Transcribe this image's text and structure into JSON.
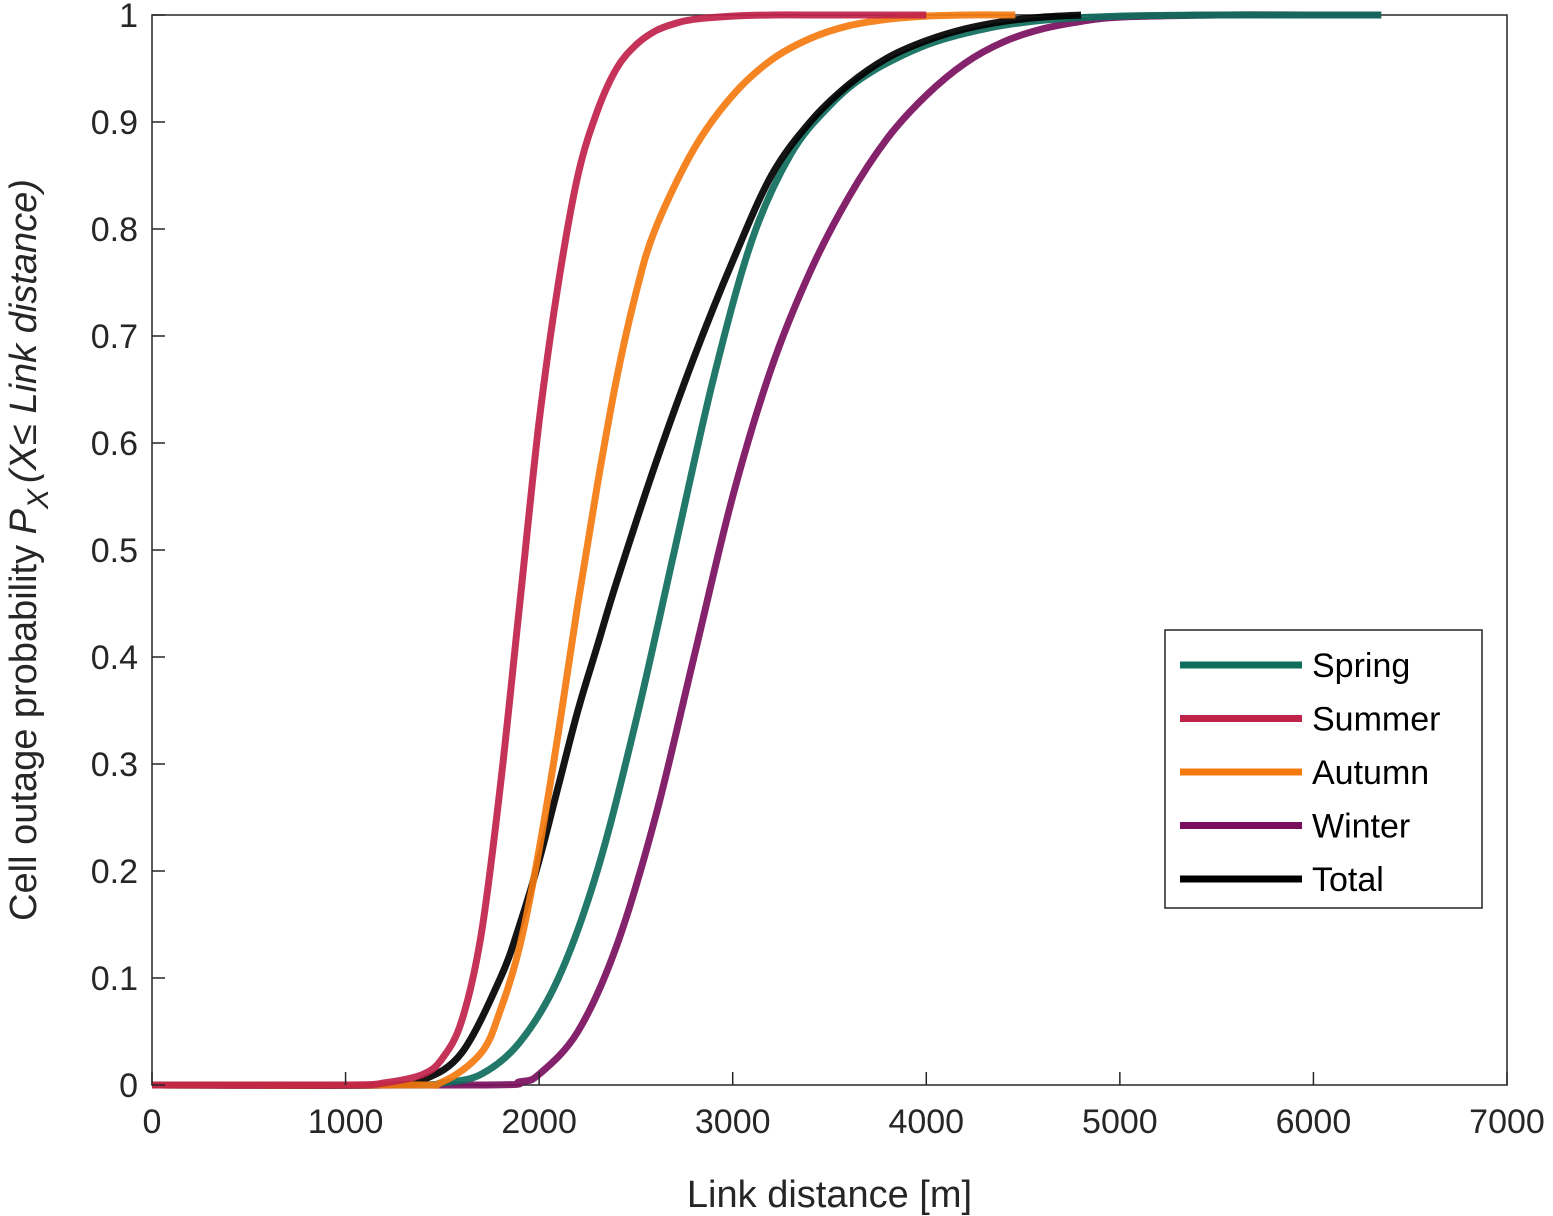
{
  "chart_data": {
    "type": "line",
    "xlabel": "Link distance [m]",
    "ylabel": {
      "prefix": "Cell outage probability ",
      "P": "P",
      "sub": "X",
      "paren": "(X≤ Link distance)"
    },
    "xlim": [
      0,
      7000
    ],
    "ylim": [
      0,
      1
    ],
    "xticks": [
      0,
      1000,
      2000,
      3000,
      4000,
      5000,
      6000,
      7000
    ],
    "yticks": [
      0,
      0.1,
      0.2,
      0.3,
      0.4,
      0.5,
      0.6,
      0.7,
      0.8,
      0.9,
      1
    ],
    "xtick_labels": [
      "0",
      "1000",
      "2000",
      "3000",
      "4000",
      "5000",
      "6000",
      "7000"
    ],
    "ytick_labels": [
      "0",
      "0.1",
      "0.2",
      "0.3",
      "0.4",
      "0.5",
      "0.6",
      "0.7",
      "0.8",
      "0.9",
      "1"
    ],
    "grid": false,
    "legend_position": "lower-right",
    "series": [
      {
        "name": "Spring",
        "color": "#0f6e5c",
        "x": [
          0,
          1300,
          1500,
          1700,
          1900,
          2100,
          2300,
          2500,
          2700,
          2900,
          3100,
          3300,
          3500,
          3700,
          4000,
          4300,
          4600,
          5000,
          5500,
          6000,
          6350
        ],
        "y": [
          0,
          0,
          0.002,
          0.01,
          0.04,
          0.1,
          0.2,
          0.34,
          0.5,
          0.66,
          0.79,
          0.87,
          0.915,
          0.945,
          0.972,
          0.987,
          0.995,
          0.999,
          1,
          1,
          1
        ]
      },
      {
        "name": "Summer",
        "color": "#c0234a",
        "x": [
          0,
          1000,
          1200,
          1400,
          1500,
          1600,
          1700,
          1800,
          1900,
          2000,
          2100,
          2200,
          2300,
          2400,
          2500,
          2600,
          2700,
          2800,
          3000,
          3200,
          3500,
          4000
        ],
        "y": [
          0,
          0,
          0.002,
          0.01,
          0.025,
          0.06,
          0.14,
          0.28,
          0.45,
          0.62,
          0.75,
          0.85,
          0.91,
          0.95,
          0.972,
          0.985,
          0.992,
          0.996,
          0.999,
          1,
          1,
          1
        ]
      },
      {
        "name": "Autumn",
        "color": "#f47a10",
        "x": [
          0,
          1300,
          1500,
          1700,
          1800,
          1900,
          2000,
          2100,
          2200,
          2300,
          2400,
          2500,
          2600,
          2800,
          3000,
          3200,
          3400,
          3600,
          3800,
          4000,
          4200,
          4460
        ],
        "y": [
          0,
          0,
          0.003,
          0.03,
          0.07,
          0.13,
          0.22,
          0.33,
          0.45,
          0.56,
          0.66,
          0.74,
          0.8,
          0.875,
          0.925,
          0.958,
          0.978,
          0.99,
          0.996,
          0.999,
          1,
          1
        ]
      },
      {
        "name": "Winter",
        "color": "#7a0f5e",
        "x": [
          0,
          1700,
          1900,
          2000,
          2200,
          2400,
          2600,
          2800,
          3000,
          3200,
          3400,
          3600,
          3800,
          4000,
          4200,
          4400,
          4600,
          4800,
          5000,
          5500,
          6000,
          6350
        ],
        "y": [
          0,
          0,
          0.003,
          0.01,
          0.05,
          0.13,
          0.25,
          0.4,
          0.55,
          0.67,
          0.76,
          0.83,
          0.885,
          0.925,
          0.955,
          0.975,
          0.987,
          0.994,
          0.998,
          1,
          1,
          1
        ]
      },
      {
        "name": "Total",
        "color": "#000000",
        "x": [
          0,
          1200,
          1400,
          1600,
          1800,
          1900,
          2000,
          2100,
          2200,
          2300,
          2400,
          2600,
          2800,
          3000,
          3200,
          3400,
          3600,
          3800,
          4000,
          4200,
          4400,
          4600,
          4800
        ],
        "y": [
          0,
          0,
          0.005,
          0.03,
          0.1,
          0.15,
          0.21,
          0.28,
          0.35,
          0.41,
          0.47,
          0.58,
          0.68,
          0.77,
          0.85,
          0.9,
          0.935,
          0.96,
          0.976,
          0.987,
          0.994,
          0.998,
          1
        ]
      }
    ]
  }
}
